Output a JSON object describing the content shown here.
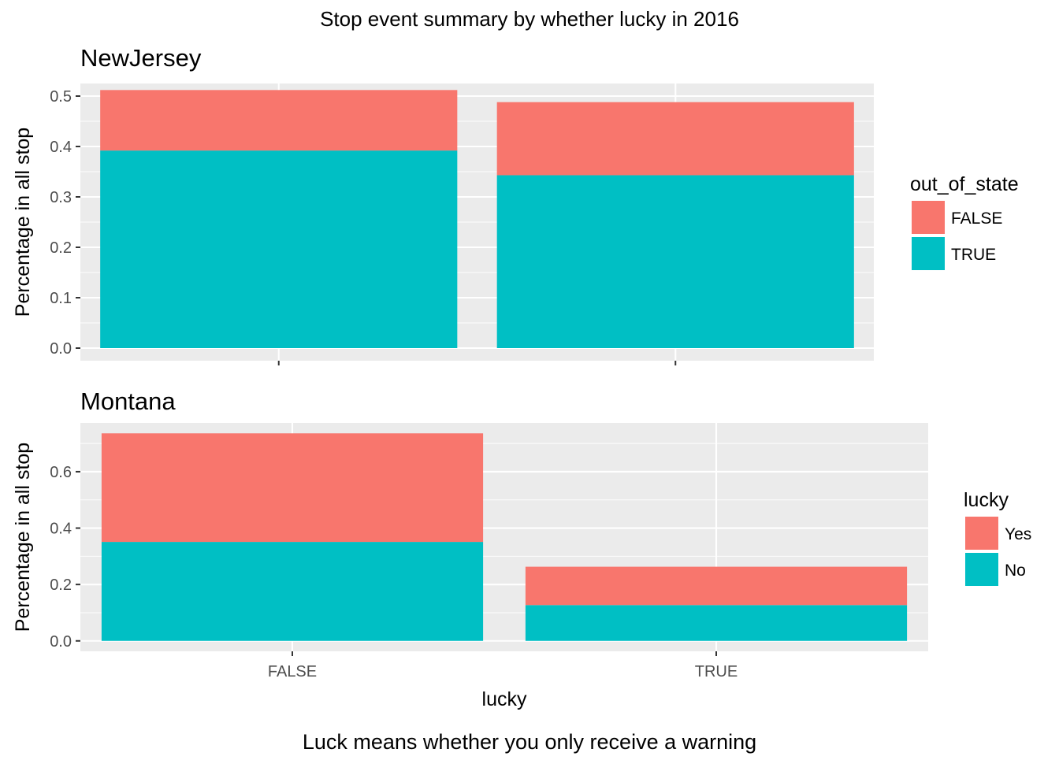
{
  "title": "Stop event summary by whether lucky in 2016",
  "caption": "Luck means whether you only receive a warning",
  "chart_data": [
    {
      "type": "bar",
      "stacked": true,
      "title": "NewJersey",
      "xlabel": "",
      "ylabel": "Percentage in all stop",
      "categories": [
        "FALSE",
        "TRUE"
      ],
      "show_x_tick_labels": false,
      "ylim": [
        -0.025,
        0.525
      ],
      "yticks": [
        0.0,
        0.1,
        0.2,
        0.3,
        0.4,
        0.5
      ],
      "ytick_labels": [
        "0.0",
        "0.1",
        "0.2",
        "0.3",
        "0.4",
        "0.5"
      ],
      "series": [
        {
          "name": "TRUE",
          "color": "#00BFC4",
          "values": [
            0.392,
            0.343
          ]
        },
        {
          "name": "FALSE",
          "color": "#F8766D",
          "values": [
            0.12,
            0.145
          ]
        }
      ],
      "legend": {
        "title": "out_of_state",
        "position": "right",
        "entries": [
          {
            "label": "FALSE",
            "color": "#F8766D"
          },
          {
            "label": "TRUE",
            "color": "#00BFC4"
          }
        ]
      },
      "grid": true
    },
    {
      "type": "bar",
      "stacked": true,
      "title": "Montana",
      "xlabel": "lucky",
      "ylabel": "Percentage in all stop",
      "categories": [
        "FALSE",
        "TRUE"
      ],
      "show_x_tick_labels": true,
      "ylim": [
        -0.037,
        0.773
      ],
      "yticks": [
        0.0,
        0.2,
        0.4,
        0.6
      ],
      "ytick_labels": [
        "0.0",
        "0.2",
        "0.4",
        "0.6"
      ],
      "series": [
        {
          "name": "No",
          "color": "#00BFC4",
          "values": [
            0.351,
            0.127
          ]
        },
        {
          "name": "Yes",
          "color": "#F8766D",
          "values": [
            0.385,
            0.136
          ]
        }
      ],
      "legend": {
        "title": "lucky",
        "position": "right",
        "entries": [
          {
            "label": "Yes",
            "color": "#F8766D"
          },
          {
            "label": "No",
            "color": "#00BFC4"
          }
        ]
      },
      "grid": true
    }
  ]
}
